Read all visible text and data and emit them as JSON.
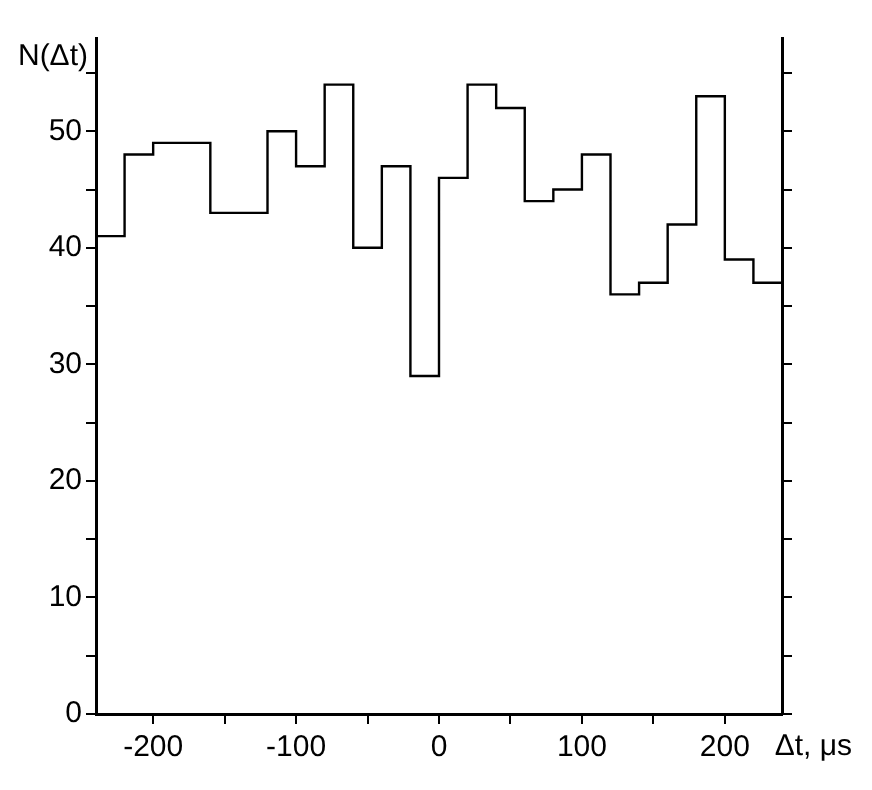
{
  "chart_data": {
    "type": "histogram",
    "xlabel": "Δt, μs",
    "ylabel": "N(Δt)",
    "bins": [
      -240,
      -220,
      -200,
      -180,
      -160,
      -140,
      -120,
      -100,
      -80,
      -60,
      -40,
      -20,
      0,
      20,
      40,
      60,
      80,
      100,
      120,
      140,
      160,
      180,
      200,
      220,
      240
    ],
    "values": [
      41,
      48,
      49,
      49,
      43,
      43,
      50,
      47,
      54,
      40,
      47,
      29,
      46,
      54,
      52,
      44,
      45,
      48,
      36,
      37,
      42,
      53,
      39,
      37
    ],
    "color": "#000000",
    "xlim": [
      -240,
      240
    ],
    "ylim": [
      0,
      58
    ],
    "xticks": [
      {
        "value": -200,
        "label": "-200"
      },
      {
        "value": -150,
        "label": null
      },
      {
        "value": -100,
        "label": "-100"
      },
      {
        "value": -50,
        "label": null
      },
      0,
      {
        "value": 50,
        "label": null
      },
      100,
      {
        "value": 150,
        "label": null
      },
      200
    ],
    "yticks": [
      0,
      {
        "value": 5,
        "label": null
      },
      10,
      {
        "value": 15,
        "label": null
      },
      20,
      {
        "value": 25,
        "label": null
      },
      30,
      {
        "value": 35,
        "label": null
      },
      40,
      {
        "value": 45,
        "label": null
      },
      50,
      {
        "value": 55,
        "label": null
      }
    ],
    "grid": false,
    "legend": false
  }
}
